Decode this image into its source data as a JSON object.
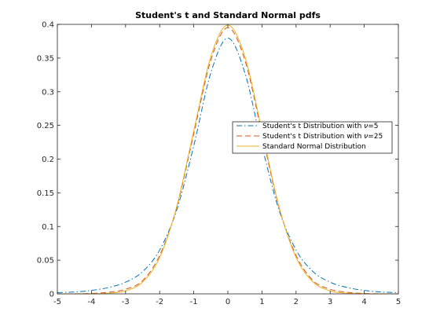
{
  "chart_data": {
    "type": "line",
    "title": "Student's t and Standard Normal pdfs",
    "xlabel": "",
    "ylabel": "",
    "xlim": [
      -5,
      5
    ],
    "ylim": [
      0,
      0.4
    ],
    "x_ticks": [
      -5,
      -4,
      -3,
      -2,
      -1,
      0,
      1,
      2,
      3,
      4,
      5
    ],
    "y_ticks": [
      0,
      0.05,
      0.1,
      0.15,
      0.2,
      0.25,
      0.3,
      0.35,
      0.4
    ],
    "x_tick_labels": [
      "-5",
      "-4",
      "-3",
      "-2",
      "-1",
      "0",
      "1",
      "2",
      "3",
      "4",
      "5"
    ],
    "y_tick_labels": [
      "0",
      "0.05",
      "0.1",
      "0.15",
      "0.2",
      "0.25",
      "0.3",
      "0.35",
      "0.4"
    ],
    "grid": false,
    "legend_position": "right",
    "x": [
      -5,
      -4.5,
      -4,
      -3.5,
      -3,
      -2.5,
      -2,
      -1.5,
      -1,
      -0.5,
      0,
      0.5,
      1,
      1.5,
      2,
      2.5,
      3,
      3.5,
      4,
      4.5,
      5
    ],
    "series": [
      {
        "name_prefix": "Student's t Distribution with ",
        "name_symbol": "ν",
        "name_suffix": "=5",
        "style": "dashdot",
        "color": "#0072BD",
        "values": [
          0.0018,
          0.0028,
          0.0051,
          0.0094,
          0.0173,
          0.0329,
          0.0651,
          0.1245,
          0.2197,
          0.3279,
          0.3796,
          0.3279,
          0.2197,
          0.1245,
          0.0651,
          0.0329,
          0.0173,
          0.0094,
          0.0051,
          0.0028,
          0.0018
        ]
      },
      {
        "name_prefix": "Student's t Distribution with ",
        "name_symbol": "ν",
        "name_suffix": "=25",
        "style": "dashed",
        "color": "#D95319",
        "values": [
          0.0,
          0.0001,
          0.0006,
          0.0023,
          0.0068,
          0.0196,
          0.0572,
          0.1281,
          0.2376,
          0.3467,
          0.395,
          0.3467,
          0.2376,
          0.1281,
          0.0572,
          0.0196,
          0.0068,
          0.0023,
          0.0006,
          0.0001,
          0.0
        ]
      },
      {
        "name": "Standard Normal Distribution",
        "style": "solid",
        "color": "#EDB120",
        "values": [
          0.0,
          0.0,
          0.0001,
          0.0009,
          0.0044,
          0.0175,
          0.054,
          0.1295,
          0.242,
          0.3521,
          0.3989,
          0.3521,
          0.242,
          0.1295,
          0.054,
          0.0175,
          0.0044,
          0.0009,
          0.0001,
          0.0,
          0.0
        ]
      }
    ]
  }
}
